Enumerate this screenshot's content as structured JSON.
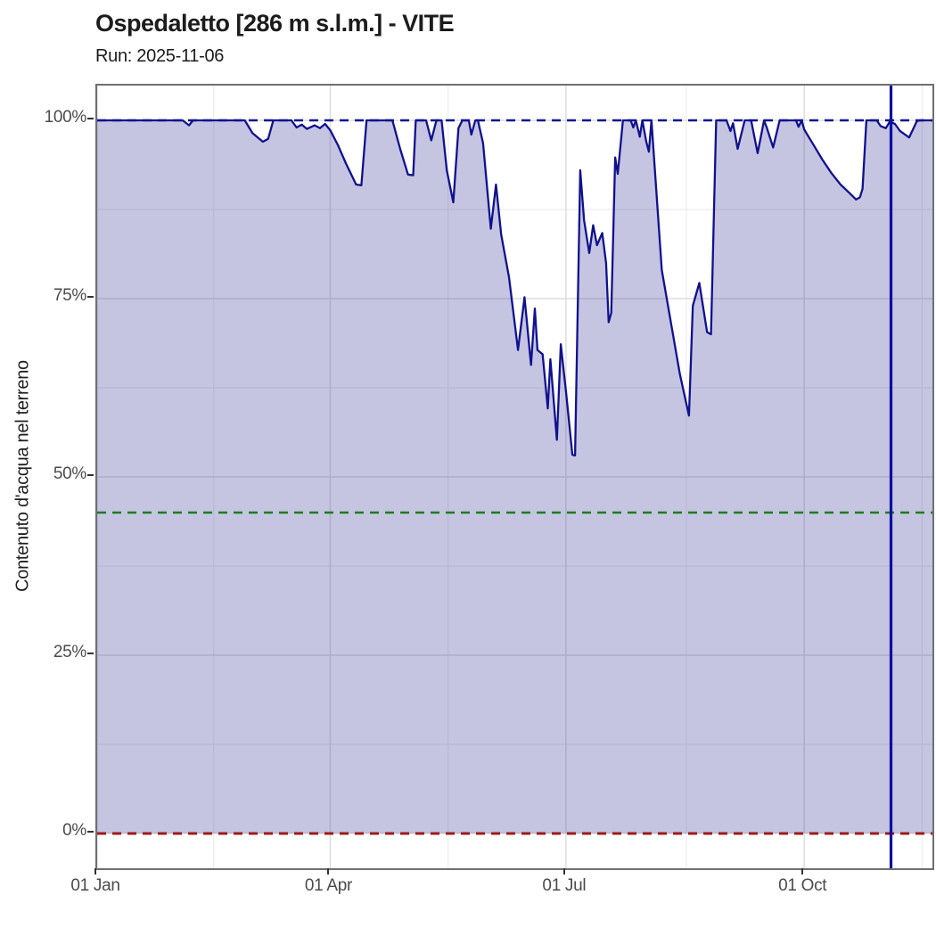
{
  "header": {
    "title": "Ospedaletto [286 m s.l.m.] - VITE",
    "subtitle": "Run: 2025-11-06"
  },
  "y_axis": {
    "title": "Contenuto d'acqua nel terreno",
    "ticks": [
      {
        "label": "100%",
        "value": 100
      },
      {
        "label": "75%",
        "value": 75
      },
      {
        "label": "50%",
        "value": 50
      },
      {
        "label": "25%",
        "value": 25
      },
      {
        "label": "0%",
        "value": 0
      }
    ],
    "minor_values": [
      87.5,
      62.5,
      37.5,
      12.5
    ],
    "range": [
      0,
      100
    ],
    "unit": "%"
  },
  "x_axis": {
    "ticks": [
      {
        "label": "01 Jan",
        "day": 0
      },
      {
        "label": "01 Apr",
        "day": 90
      },
      {
        "label": "01 Jul",
        "day": 181
      },
      {
        "label": "01 Oct",
        "day": 273
      }
    ],
    "minor_days": [
      45,
      135.5,
      227.5,
      318.5
    ],
    "domain_days": [
      0,
      322.5
    ]
  },
  "chart_data": {
    "type": "area",
    "title": "Ospedaletto [286 m s.l.m.] - VITE",
    "subtitle": "Run: 2025-11-06",
    "ylabel": "Contenuto d'acqua nel terreno",
    "ylim": [
      0,
      100
    ],
    "y_unit": "%",
    "x_unit": "day_of_year_2025",
    "grid": "major_and_minor",
    "legend": "none",
    "series": [
      {
        "name": "contenuto_acqua_terreno",
        "x_days": [
          0,
          33,
          35.5,
          37,
          57,
          60,
          64,
          66,
          68,
          75,
          77,
          79,
          81,
          84,
          86,
          88,
          90,
          93,
          96,
          100,
          102,
          104,
          114,
          117,
          120,
          122,
          123,
          127,
          129,
          131,
          133,
          135,
          137.5,
          139.5,
          141,
          143.5,
          144.5,
          146,
          147,
          149,
          152,
          154,
          156,
          159,
          162.5,
          165,
          167.5,
          169,
          170,
          172,
          174,
          175,
          177.5,
          179,
          181,
          183.5,
          184.5,
          186.5,
          188,
          190,
          191.5,
          193,
          195,
          196.5,
          197.5,
          198.5,
          200,
          201,
          203,
          206,
          207,
          208,
          209.5,
          210.5,
          212,
          213,
          214,
          218,
          225,
          228.5,
          230,
          232.5,
          235.5,
          237,
          239,
          243,
          244.5,
          245.5,
          247.3,
          250,
          252.5,
          255,
          257.5,
          258.5,
          261,
          263.5,
          269.8,
          270.8,
          272,
          273,
          276.5,
          280,
          283.5,
          287,
          290.5,
          293,
          294.5,
          295.5,
          297,
          301,
          302.5,
          304.5,
          306,
          308,
          310,
          313.5,
          316.5,
          318,
          322.5
        ],
        "values_pct": [
          100,
          100,
          99.3,
          100,
          100,
          98.2,
          97,
          97.4,
          100,
          100,
          99,
          99.4,
          98.8,
          99.3,
          98.9,
          99.5,
          98.6,
          96.5,
          94,
          91,
          90.9,
          100,
          100,
          96,
          92.4,
          92.3,
          100,
          100,
          97.2,
          100,
          100,
          93,
          88.5,
          98.9,
          100,
          100,
          98,
          100,
          100,
          96.8,
          84.8,
          91,
          84,
          78,
          67.8,
          75.2,
          65.7,
          73.6,
          67.8,
          67.2,
          59.6,
          66.5,
          55.2,
          68.6,
          62,
          53.1,
          53,
          93,
          86,
          81.4,
          85.3,
          82.5,
          84.2,
          80,
          71.7,
          73,
          94.8,
          92.5,
          100,
          100,
          99,
          100,
          97.7,
          100,
          97,
          95.6,
          100,
          79,
          64.4,
          58.6,
          74,
          77.2,
          70.3,
          70,
          100,
          100,
          98.5,
          99.6,
          96,
          100,
          100,
          95.4,
          100,
          99,
          96.2,
          100,
          100,
          99.1,
          100,
          98.7,
          96.6,
          94.5,
          92.6,
          91,
          89.8,
          88.9,
          89.2,
          90.4,
          100,
          100,
          99.2,
          98.9,
          99.8,
          99.5,
          98.5,
          97.6,
          99.9,
          100,
          100
        ]
      }
    ],
    "reference_lines": {
      "horizontal": [
        {
          "value_pct": 100,
          "style": "dashed",
          "color": "#11118f"
        },
        {
          "value_pct": 45,
          "style": "dashed",
          "color": "#1b7d1b"
        },
        {
          "value_pct": 0,
          "style": "dashed",
          "color": "#9b1b1b"
        }
      ],
      "vertical": [
        {
          "day": 306.5,
          "style": "solid",
          "color": "#0d0da0"
        }
      ]
    },
    "colors": {
      "line": "#11118f",
      "fill": "#3e3e9e",
      "fill_opacity": 0.3
    }
  }
}
